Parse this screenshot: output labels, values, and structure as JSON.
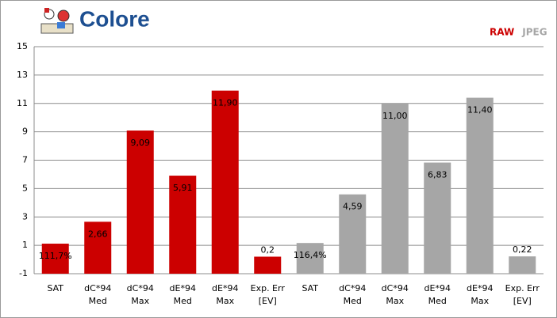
{
  "chart_data": {
    "type": "bar",
    "title": "Colore",
    "categories": [
      "SAT",
      "dC*94\nMed",
      "dC*94\nMax",
      "dE*94\nMed",
      "dE*94\nMax",
      "Exp. Err\n[EV]",
      "SAT",
      "dC*94\nMed",
      "dC*94\nMax",
      "dE*94\nMed",
      "dE*94\nMax",
      "Exp. Err\n[EV]"
    ],
    "series": [
      {
        "name": "RAW",
        "color": "#cc0000",
        "values": [
          1.117,
          2.66,
          9.09,
          5.91,
          11.9,
          0.2,
          null,
          null,
          null,
          null,
          null,
          null
        ],
        "value_labels": [
          "111,7%",
          "2,66",
          "9,09",
          "5,91",
          "11,90",
          "0,2",
          null,
          null,
          null,
          null,
          null,
          null
        ]
      },
      {
        "name": "JPEG",
        "color": "#a6a6a6",
        "values": [
          null,
          null,
          null,
          null,
          null,
          null,
          1.164,
          4.59,
          11.0,
          6.83,
          11.4,
          0.22
        ],
        "value_labels": [
          null,
          null,
          null,
          null,
          null,
          null,
          "116,4%",
          "4,59",
          "11,00",
          "6,83",
          "11,40",
          "0,22"
        ]
      }
    ],
    "ylim": [
      -1,
      15
    ],
    "yticks": [
      -1,
      1,
      3,
      5,
      7,
      9,
      11,
      13,
      15
    ],
    "grid": true,
    "legend": "top-right"
  }
}
